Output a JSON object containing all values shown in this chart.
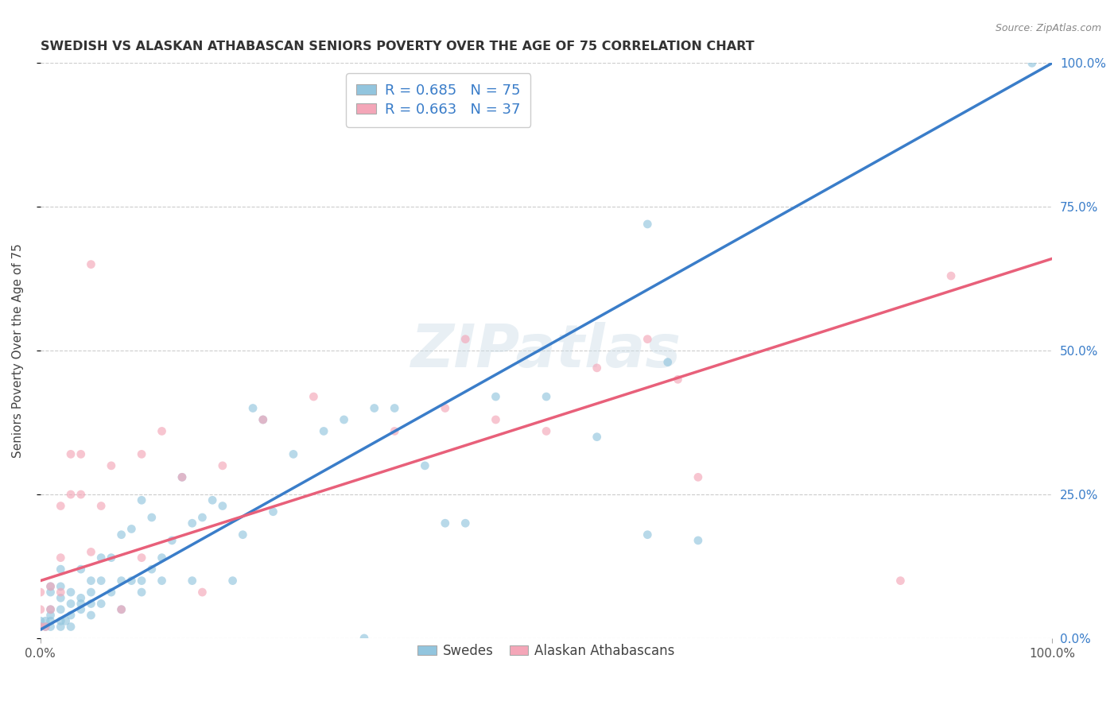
{
  "title": "SWEDISH VS ALASKAN ATHABASCAN SENIORS POVERTY OVER THE AGE OF 75 CORRELATION CHART",
  "source": "Source: ZipAtlas.com",
  "ylabel": "Seniors Poverty Over the Age of 75",
  "watermark": "ZIPatlas",
  "legend_blue_label": "Swedes",
  "legend_pink_label": "Alaskan Athabascans",
  "blue_color": "#92c5de",
  "pink_color": "#f4a6b8",
  "blue_line_color": "#3a7dc9",
  "pink_line_color": "#e8607a",
  "title_color": "#333333",
  "r_value_color": "#3a7dc9",
  "xlim": [
    0.0,
    1.0
  ],
  "ylim": [
    0.0,
    1.0
  ],
  "blue_trend_x": [
    0.0,
    1.0
  ],
  "blue_trend_y": [
    0.015,
    1.0
  ],
  "pink_trend_x": [
    0.0,
    1.0
  ],
  "pink_trend_y": [
    0.1,
    0.66
  ],
  "blue_x": [
    0.0,
    0.0,
    0.005,
    0.005,
    0.01,
    0.01,
    0.01,
    0.01,
    0.01,
    0.01,
    0.02,
    0.02,
    0.02,
    0.02,
    0.02,
    0.02,
    0.025,
    0.03,
    0.03,
    0.03,
    0.03,
    0.04,
    0.04,
    0.04,
    0.04,
    0.05,
    0.05,
    0.05,
    0.05,
    0.06,
    0.06,
    0.06,
    0.07,
    0.07,
    0.08,
    0.08,
    0.08,
    0.09,
    0.09,
    0.1,
    0.1,
    0.1,
    0.11,
    0.11,
    0.12,
    0.12,
    0.13,
    0.14,
    0.15,
    0.15,
    0.16,
    0.17,
    0.18,
    0.19,
    0.2,
    0.21,
    0.22,
    0.23,
    0.25,
    0.28,
    0.3,
    0.33,
    0.35,
    0.38,
    0.4,
    0.42,
    0.45,
    0.5,
    0.55,
    0.6,
    0.62,
    0.65,
    0.98,
    0.32,
    0.6
  ],
  "blue_y": [
    0.02,
    0.03,
    0.02,
    0.03,
    0.02,
    0.03,
    0.04,
    0.05,
    0.08,
    0.09,
    0.02,
    0.03,
    0.05,
    0.07,
    0.09,
    0.12,
    0.03,
    0.02,
    0.04,
    0.06,
    0.08,
    0.05,
    0.06,
    0.07,
    0.12,
    0.04,
    0.06,
    0.08,
    0.1,
    0.06,
    0.1,
    0.14,
    0.08,
    0.14,
    0.05,
    0.1,
    0.18,
    0.1,
    0.19,
    0.08,
    0.1,
    0.24,
    0.12,
    0.21,
    0.1,
    0.14,
    0.17,
    0.28,
    0.1,
    0.2,
    0.21,
    0.24,
    0.23,
    0.1,
    0.18,
    0.4,
    0.38,
    0.22,
    0.32,
    0.36,
    0.38,
    0.4,
    0.4,
    0.3,
    0.2,
    0.2,
    0.42,
    0.42,
    0.35,
    0.18,
    0.48,
    0.17,
    1.0,
    0.0,
    0.72
  ],
  "pink_x": [
    0.0,
    0.0,
    0.0,
    0.005,
    0.01,
    0.01,
    0.02,
    0.02,
    0.02,
    0.03,
    0.03,
    0.04,
    0.04,
    0.05,
    0.05,
    0.06,
    0.07,
    0.08,
    0.1,
    0.1,
    0.12,
    0.14,
    0.16,
    0.18,
    0.22,
    0.27,
    0.35,
    0.4,
    0.42,
    0.45,
    0.5,
    0.55,
    0.6,
    0.63,
    0.65,
    0.85,
    0.9
  ],
  "pink_y": [
    0.02,
    0.05,
    0.08,
    0.02,
    0.05,
    0.09,
    0.08,
    0.14,
    0.23,
    0.25,
    0.32,
    0.25,
    0.32,
    0.15,
    0.65,
    0.23,
    0.3,
    0.05,
    0.14,
    0.32,
    0.36,
    0.28,
    0.08,
    0.3,
    0.38,
    0.42,
    0.36,
    0.4,
    0.52,
    0.38,
    0.36,
    0.47,
    0.52,
    0.45,
    0.28,
    0.1,
    0.63
  ],
  "dot_size_blue": 60,
  "dot_size_pink": 60,
  "dot_alpha": 0.65
}
